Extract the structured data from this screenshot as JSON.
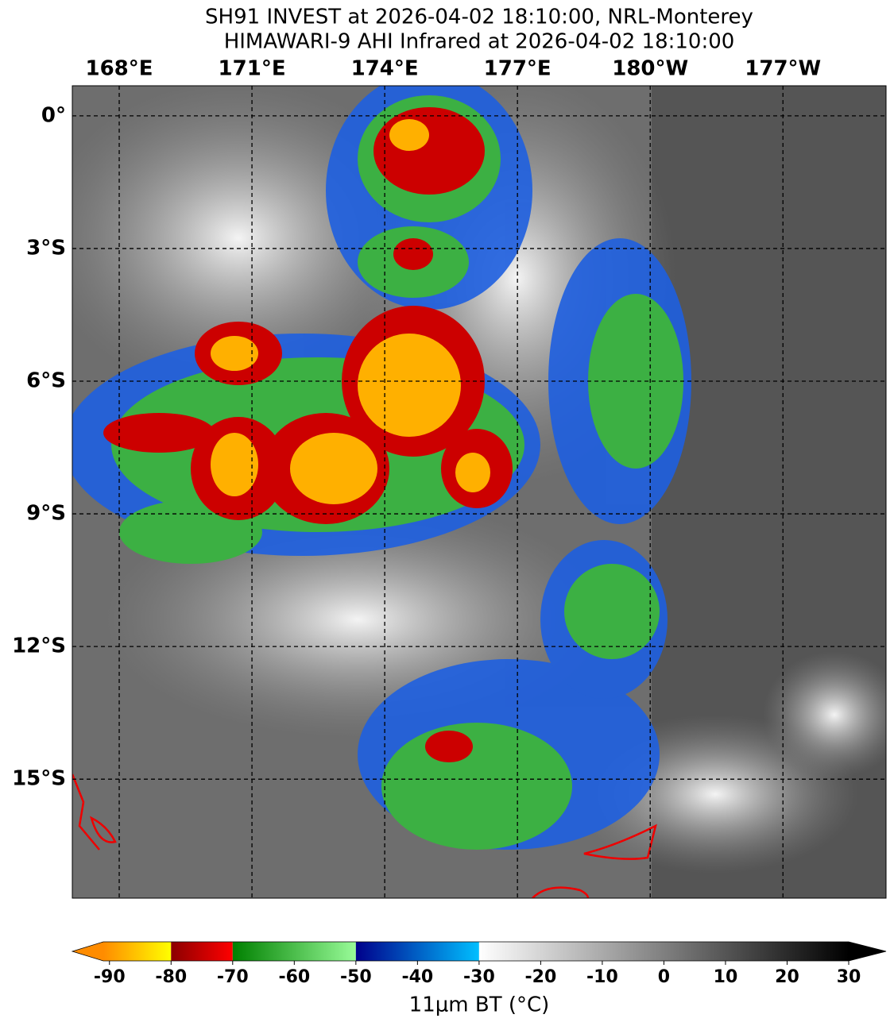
{
  "map": {
    "title": "SH91 INVEST at 2026-04-02 18:10:00, NRL-Monterey",
    "subtitle": "HIMAWARI-9 AHI Infrared at 2026-04-02 18:10:00",
    "lonlim": [
      166.94,
      185.33
    ],
    "latlim": [
      0.68,
      -17.69
    ],
    "lonticks": [
      {
        "value": 168,
        "label": "168°E"
      },
      {
        "value": 171,
        "label": "171°E"
      },
      {
        "value": 174,
        "label": "174°E"
      },
      {
        "value": 177,
        "label": "177°E"
      },
      {
        "value": 180,
        "label": "180°W"
      },
      {
        "value": 183,
        "label": "177°W"
      }
    ],
    "latticks": [
      {
        "value": 0,
        "label": "0°"
      },
      {
        "value": -3,
        "label": "3°S"
      },
      {
        "value": -6,
        "label": "6°S"
      },
      {
        "value": -9,
        "label": "9°S"
      },
      {
        "value": -12,
        "label": "12°S"
      },
      {
        "value": -15,
        "label": "15°S"
      }
    ],
    "grid": true,
    "colorbar": {
      "label": "11μm BT (°C)",
      "lim": [
        -91,
        30
      ],
      "ticks": [
        -90,
        -80,
        -70,
        -60,
        -50,
        -40,
        -30,
        -20,
        -10,
        0,
        10,
        20,
        30
      ],
      "segments": [
        {
          "from": -91,
          "to": -80,
          "colors": [
            "#ff8c00",
            "#ffff00"
          ]
        },
        {
          "from": -80,
          "to": -70,
          "colors": [
            "#8b0000",
            "#ff0000"
          ]
        },
        {
          "from": -70,
          "to": -50,
          "colors": [
            "#008000",
            "#98fb98"
          ]
        },
        {
          "from": -50,
          "to": -30,
          "colors": [
            "#00008b",
            "#00bfff"
          ]
        },
        {
          "from": -30,
          "to": 30,
          "colors": [
            "#ffffff",
            "#000000"
          ]
        }
      ]
    }
  }
}
